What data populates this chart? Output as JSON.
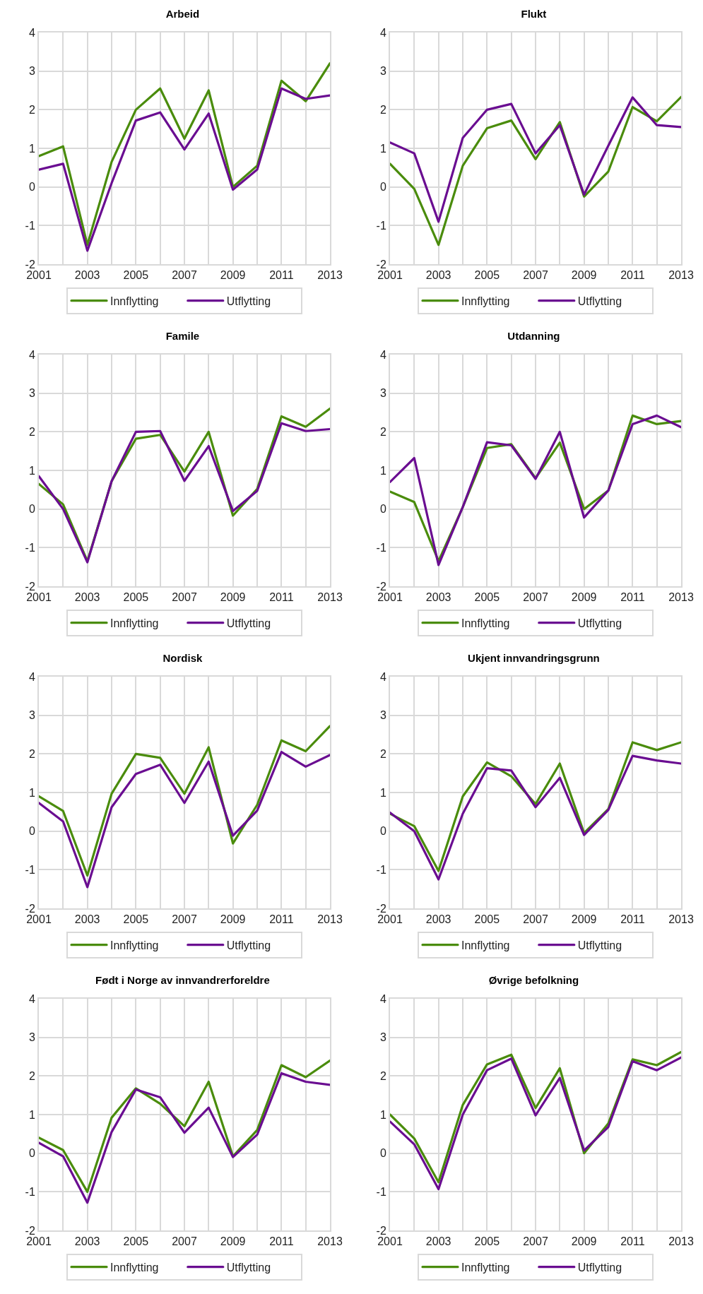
{
  "chart_data": [
    {
      "type": "line",
      "title": "Arbeid",
      "x": [
        2001,
        2002,
        2003,
        2004,
        2005,
        2006,
        2007,
        2008,
        2009,
        2010,
        2011,
        2012,
        2013
      ],
      "xlim": [
        2001,
        2013
      ],
      "xticks": [
        2001,
        {
          "value": 2002,
          "label": null
        },
        2003,
        {
          "value": 2004,
          "label": null
        },
        2005,
        {
          "value": 2006,
          "label": null
        },
        2007,
        {
          "value": 2008,
          "label": null
        },
        2009,
        {
          "value": 2010,
          "label": null
        },
        2011,
        {
          "value": 2012,
          "label": null
        },
        2013
      ],
      "ylim": [
        -2,
        4
      ],
      "yticks": [
        -2,
        -1,
        0,
        1,
        2,
        3,
        4
      ],
      "grid": true,
      "legend": "bottom",
      "marker": "none",
      "line_style": "solid",
      "series": [
        {
          "name": "Innflytting",
          "color": "#4a8c0c",
          "values": [
            0.8,
            1.05,
            -1.5,
            0.65,
            2.0,
            2.55,
            1.25,
            2.5,
            0.0,
            0.55,
            2.75,
            2.22,
            3.2
          ]
        },
        {
          "name": "Utflytting",
          "color": "#6a0d91",
          "values": [
            0.45,
            0.6,
            -1.65,
            0.1,
            1.72,
            1.93,
            0.97,
            1.9,
            -0.07,
            0.45,
            2.55,
            2.28,
            2.37
          ]
        }
      ]
    },
    {
      "type": "line",
      "title": "Flukt",
      "x": [
        2001,
        2002,
        2003,
        2004,
        2005,
        2006,
        2007,
        2008,
        2009,
        2010,
        2011,
        2012,
        2013
      ],
      "xlim": [
        2001,
        2013
      ],
      "xticks": [
        2001,
        {
          "value": 2002,
          "label": null
        },
        2003,
        {
          "value": 2004,
          "label": null
        },
        2005,
        {
          "value": 2006,
          "label": null
        },
        2007,
        {
          "value": 2008,
          "label": null
        },
        2009,
        {
          "value": 2010,
          "label": null
        },
        2011,
        {
          "value": 2012,
          "label": null
        },
        2013
      ],
      "ylim": [
        -2,
        4
      ],
      "yticks": [
        -2,
        -1,
        0,
        1,
        2,
        3,
        4
      ],
      "grid": true,
      "legend": "bottom",
      "marker": "none",
      "line_style": "solid",
      "series": [
        {
          "name": "Innflytting",
          "color": "#4a8c0c",
          "values": [
            0.6,
            -0.05,
            -1.5,
            0.55,
            1.52,
            1.72,
            0.72,
            1.68,
            -0.25,
            0.4,
            2.07,
            1.7,
            2.33
          ]
        },
        {
          "name": "Utflytting",
          "color": "#6a0d91",
          "values": [
            1.15,
            0.87,
            -0.9,
            1.27,
            2.0,
            2.15,
            0.87,
            1.6,
            -0.2,
            1.07,
            2.32,
            1.6,
            1.55
          ]
        }
      ]
    },
    {
      "type": "line",
      "title": "Famile",
      "x": [
        2001,
        2002,
        2003,
        2004,
        2005,
        2006,
        2007,
        2008,
        2009,
        2010,
        2011,
        2012,
        2013
      ],
      "xlim": [
        2001,
        2013
      ],
      "xticks": [
        2001,
        {
          "value": 2002,
          "label": null
        },
        2003,
        {
          "value": 2004,
          "label": null
        },
        2005,
        {
          "value": 2006,
          "label": null
        },
        2007,
        {
          "value": 2008,
          "label": null
        },
        2009,
        {
          "value": 2010,
          "label": null
        },
        2011,
        {
          "value": 2012,
          "label": null
        },
        2013
      ],
      "ylim": [
        -2,
        4
      ],
      "yticks": [
        -2,
        -1,
        0,
        1,
        2,
        3,
        4
      ],
      "grid": true,
      "legend": "bottom",
      "marker": "none",
      "line_style": "solid",
      "series": [
        {
          "name": "Innflytting",
          "color": "#4a8c0c",
          "values": [
            0.65,
            0.12,
            -1.35,
            0.72,
            1.82,
            1.92,
            0.97,
            2.0,
            -0.17,
            0.52,
            2.4,
            2.13,
            2.6
          ]
        },
        {
          "name": "Utflytting",
          "color": "#6a0d91",
          "values": [
            0.85,
            0.0,
            -1.38,
            0.72,
            2.0,
            2.02,
            0.73,
            1.63,
            -0.05,
            0.47,
            2.22,
            2.02,
            2.07
          ]
        }
      ]
    },
    {
      "type": "line",
      "title": "Utdanning",
      "x": [
        2001,
        2002,
        2003,
        2004,
        2005,
        2006,
        2007,
        2008,
        2009,
        2010,
        2011,
        2012,
        2013
      ],
      "xlim": [
        2001,
        2013
      ],
      "xticks": [
        2001,
        {
          "value": 2002,
          "label": null
        },
        2003,
        {
          "value": 2004,
          "label": null
        },
        2005,
        {
          "value": 2006,
          "label": null
        },
        2007,
        {
          "value": 2008,
          "label": null
        },
        2009,
        {
          "value": 2010,
          "label": null
        },
        2011,
        {
          "value": 2012,
          "label": null
        },
        2013
      ],
      "ylim": [
        -2,
        4
      ],
      "yticks": [
        -2,
        -1,
        0,
        1,
        2,
        3,
        4
      ],
      "grid": true,
      "legend": "bottom",
      "marker": "none",
      "line_style": "solid",
      "series": [
        {
          "name": "Innflytting",
          "color": "#4a8c0c",
          "values": [
            0.45,
            0.18,
            -1.35,
            0.05,
            1.58,
            1.68,
            0.8,
            1.72,
            0.0,
            0.48,
            2.42,
            2.2,
            2.28
          ]
        },
        {
          "name": "Utflytting",
          "color": "#6a0d91",
          "values": [
            0.7,
            1.32,
            -1.45,
            0.05,
            1.73,
            1.65,
            0.78,
            2.0,
            -0.22,
            0.48,
            2.2,
            2.42,
            2.12
          ]
        }
      ]
    },
    {
      "type": "line",
      "title": "Nordisk",
      "x": [
        2001,
        2002,
        2003,
        2004,
        2005,
        2006,
        2007,
        2008,
        2009,
        2010,
        2011,
        2012,
        2013
      ],
      "xlim": [
        2001,
        2013
      ],
      "xticks": [
        2001,
        {
          "value": 2002,
          "label": null
        },
        2003,
        {
          "value": 2004,
          "label": null
        },
        2005,
        {
          "value": 2006,
          "label": null
        },
        2007,
        {
          "value": 2008,
          "label": null
        },
        2009,
        {
          "value": 2010,
          "label": null
        },
        2011,
        {
          "value": 2012,
          "label": null
        },
        2013
      ],
      "ylim": [
        -2,
        4
      ],
      "yticks": [
        -2,
        -1,
        0,
        1,
        2,
        3,
        4
      ],
      "grid": true,
      "legend": "bottom",
      "marker": "none",
      "line_style": "solid",
      "series": [
        {
          "name": "Innflytting",
          "color": "#4a8c0c",
          "values": [
            0.9,
            0.52,
            -1.15,
            0.97,
            2.0,
            1.9,
            0.97,
            2.17,
            -0.32,
            0.68,
            2.35,
            2.07,
            2.72
          ]
        },
        {
          "name": "Utflytting",
          "color": "#6a0d91",
          "values": [
            0.73,
            0.25,
            -1.45,
            0.62,
            1.48,
            1.72,
            0.73,
            1.8,
            -0.12,
            0.53,
            2.05,
            1.67,
            1.97
          ]
        }
      ]
    },
    {
      "type": "line",
      "title": "Ukjent innvandringsgrunn",
      "x": [
        2001,
        2002,
        2003,
        2004,
        2005,
        2006,
        2007,
        2008,
        2009,
        2010,
        2011,
        2012,
        2013
      ],
      "xlim": [
        2001,
        2013
      ],
      "xticks": [
        2001,
        {
          "value": 2002,
          "label": null
        },
        2003,
        {
          "value": 2004,
          "label": null
        },
        2005,
        {
          "value": 2006,
          "label": null
        },
        2007,
        {
          "value": 2008,
          "label": null
        },
        2009,
        {
          "value": 2010,
          "label": null
        },
        2011,
        {
          "value": 2012,
          "label": null
        },
        2013
      ],
      "ylim": [
        -2,
        4
      ],
      "yticks": [
        -2,
        -1,
        0,
        1,
        2,
        3,
        4
      ],
      "grid": true,
      "legend": "bottom",
      "marker": "none",
      "line_style": "solid",
      "series": [
        {
          "name": "Innflytting",
          "color": "#4a8c0c",
          "values": [
            0.45,
            0.13,
            -1.03,
            0.9,
            1.78,
            1.42,
            0.7,
            1.75,
            -0.05,
            0.57,
            2.3,
            2.1,
            2.3
          ]
        },
        {
          "name": "Utflytting",
          "color": "#6a0d91",
          "values": [
            0.48,
            0.0,
            -1.25,
            0.45,
            1.63,
            1.57,
            0.62,
            1.38,
            -0.1,
            0.55,
            1.95,
            1.83,
            1.75
          ]
        }
      ]
    },
    {
      "type": "line",
      "title": "Født i Norge av innvandrerforeldre",
      "x": [
        2001,
        2002,
        2003,
        2004,
        2005,
        2006,
        2007,
        2008,
        2009,
        2010,
        2011,
        2012,
        2013
      ],
      "xlim": [
        2001,
        2013
      ],
      "xticks": [
        2001,
        {
          "value": 2002,
          "label": null
        },
        2003,
        {
          "value": 2004,
          "label": null
        },
        2005,
        {
          "value": 2006,
          "label": null
        },
        2007,
        {
          "value": 2008,
          "label": null
        },
        2009,
        {
          "value": 2010,
          "label": null
        },
        2011,
        {
          "value": 2012,
          "label": null
        },
        2013
      ],
      "ylim": [
        -2,
        4
      ],
      "yticks": [
        -2,
        -1,
        0,
        1,
        2,
        3,
        4
      ],
      "grid": true,
      "legend": "bottom",
      "marker": "none",
      "line_style": "solid",
      "series": [
        {
          "name": "Innflytting",
          "color": "#4a8c0c",
          "values": [
            0.4,
            0.08,
            -1.0,
            0.92,
            1.68,
            1.28,
            0.7,
            1.85,
            -0.08,
            0.6,
            2.28,
            1.97,
            2.4
          ]
        },
        {
          "name": "Utflytting",
          "color": "#6a0d91",
          "values": [
            0.27,
            -0.08,
            -1.28,
            0.55,
            1.65,
            1.45,
            0.53,
            1.18,
            -0.1,
            0.48,
            2.07,
            1.85,
            1.77
          ]
        }
      ]
    },
    {
      "type": "line",
      "title": "Øvrige befolkning",
      "x": [
        2001,
        2002,
        2003,
        2004,
        2005,
        2006,
        2007,
        2008,
        2009,
        2010,
        2011,
        2012,
        2013
      ],
      "xlim": [
        2001,
        2013
      ],
      "xticks": [
        2001,
        {
          "value": 2002,
          "label": null
        },
        2003,
        {
          "value": 2004,
          "label": null
        },
        2005,
        {
          "value": 2006,
          "label": null
        },
        2007,
        {
          "value": 2008,
          "label": null
        },
        2009,
        {
          "value": 2010,
          "label": null
        },
        2011,
        {
          "value": 2012,
          "label": null
        },
        2013
      ],
      "ylim": [
        -2,
        4
      ],
      "yticks": [
        -2,
        -1,
        0,
        1,
        2,
        3,
        4
      ],
      "grid": true,
      "legend": "bottom",
      "marker": "none",
      "line_style": "solid",
      "series": [
        {
          "name": "Innflytting",
          "color": "#4a8c0c",
          "values": [
            1.0,
            0.38,
            -0.75,
            1.25,
            2.3,
            2.55,
            1.17,
            2.2,
            0.0,
            0.77,
            2.43,
            2.28,
            2.62
          ]
        },
        {
          "name": "Utflytting",
          "color": "#6a0d91",
          "values": [
            0.82,
            0.23,
            -0.93,
            1.0,
            2.15,
            2.45,
            0.98,
            1.95,
            0.07,
            0.68,
            2.38,
            2.15,
            2.48
          ]
        }
      ]
    }
  ]
}
